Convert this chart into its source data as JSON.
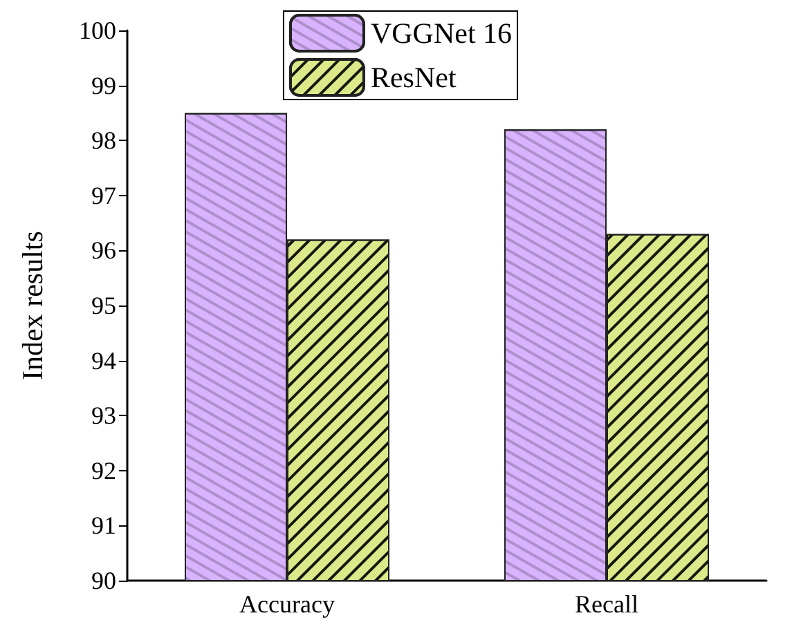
{
  "chart_data": {
    "type": "bar",
    "ylabel": "Index results",
    "categories": [
      "Accuracy",
      "Recall"
    ],
    "series": [
      {
        "name": "VGGNet 16",
        "color": "#d9b3ff",
        "values": [
          98.5,
          98.2
        ]
      },
      {
        "name": "ResNet",
        "color": "#dbe98a",
        "values": [
          96.2,
          96.3
        ]
      }
    ],
    "ylim": [
      90,
      100
    ],
    "yticks": [
      90,
      91,
      92,
      93,
      94,
      95,
      96,
      97,
      98,
      99,
      100
    ],
    "grid": false,
    "legend": "top"
  }
}
